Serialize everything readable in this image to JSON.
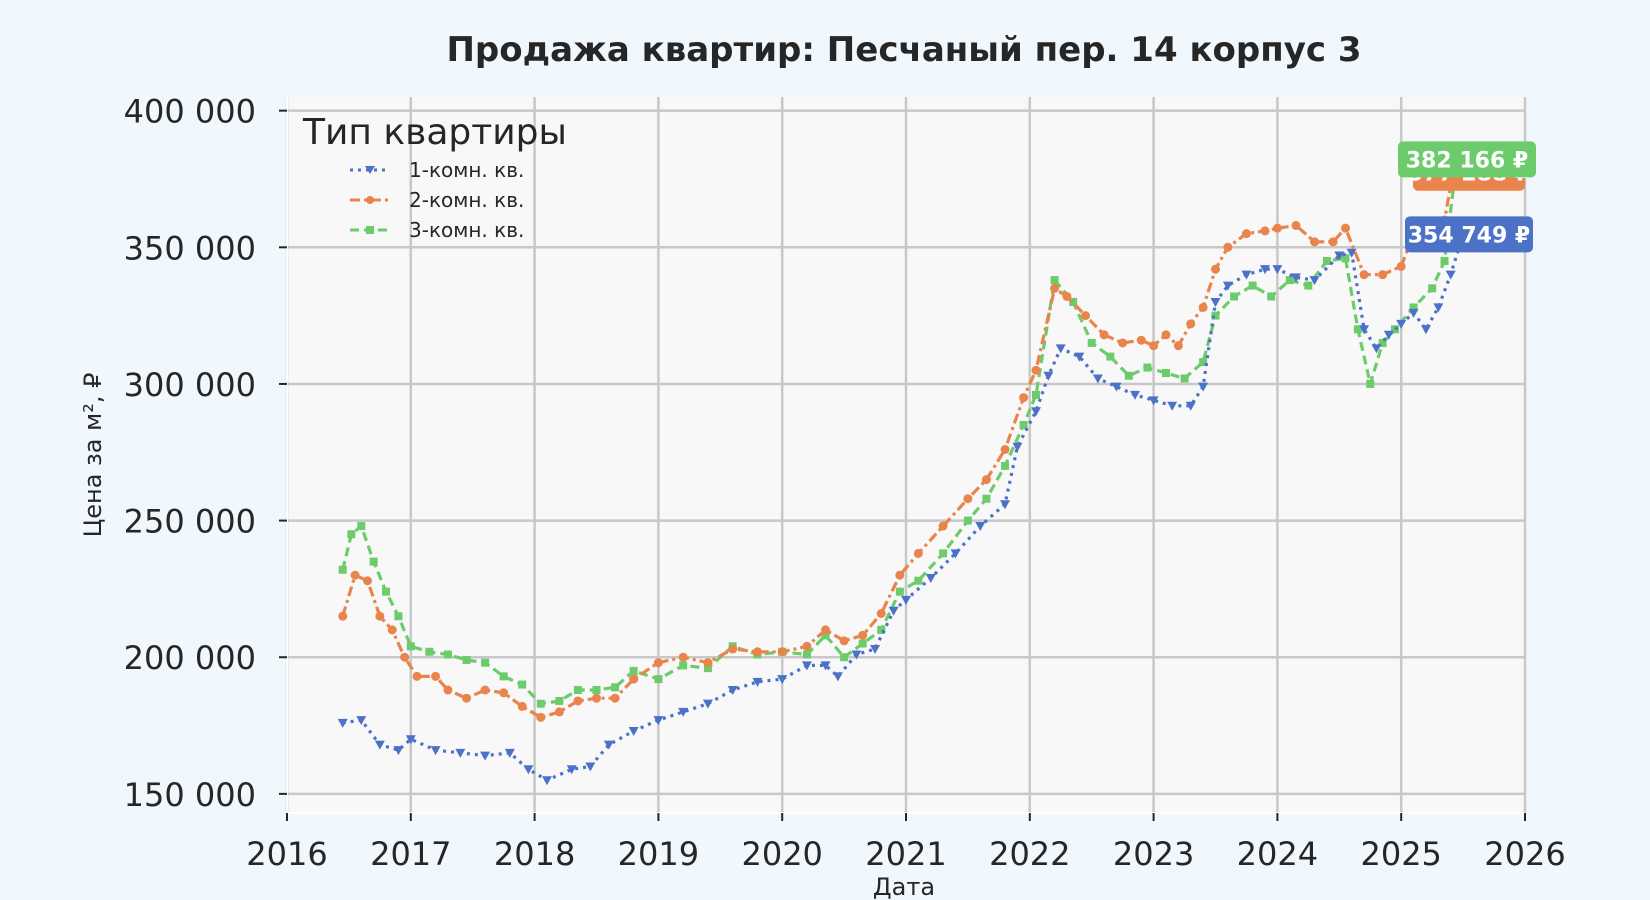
{
  "chart_data": {
    "type": "line",
    "title": "Продажа квартир: Песчаный пер. 14 корпус 3",
    "xlabel": "Дата",
    "ylabel": "Цена за м², ₽",
    "x_ticks": [
      "2016",
      "2017",
      "2018",
      "2019",
      "2020",
      "2021",
      "2022",
      "2023",
      "2024",
      "2025",
      "2026"
    ],
    "y_ticks": [
      "150 000",
      "200 000",
      "250 000",
      "300 000",
      "350 000",
      "400 000"
    ],
    "xlim": [
      2016.0,
      2026.0
    ],
    "ylim": [
      143000,
      405000
    ],
    "grid": true,
    "legend": {
      "title": "Тип квартиры",
      "position": "top-left"
    },
    "series": [
      {
        "name": "1-комн. кв.",
        "color": "#4c72c8",
        "style": "dotted",
        "marker": "triangle-down",
        "last_value_label": "354 749 ₽",
        "points": [
          [
            2016.45,
            176000
          ],
          [
            2016.6,
            177000
          ],
          [
            2016.75,
            168000
          ],
          [
            2016.9,
            166000
          ],
          [
            2017.0,
            170000
          ],
          [
            2017.2,
            166000
          ],
          [
            2017.4,
            165000
          ],
          [
            2017.6,
            164000
          ],
          [
            2017.8,
            165000
          ],
          [
            2017.95,
            159000
          ],
          [
            2018.1,
            155000
          ],
          [
            2018.3,
            159000
          ],
          [
            2018.45,
            160000
          ],
          [
            2018.6,
            168000
          ],
          [
            2018.8,
            173000
          ],
          [
            2019.0,
            177000
          ],
          [
            2019.2,
            180000
          ],
          [
            2019.4,
            183000
          ],
          [
            2019.6,
            188000
          ],
          [
            2019.8,
            191000
          ],
          [
            2020.0,
            192000
          ],
          [
            2020.2,
            197000
          ],
          [
            2020.35,
            197000
          ],
          [
            2020.45,
            193000
          ],
          [
            2020.6,
            201000
          ],
          [
            2020.75,
            203000
          ],
          [
            2020.9,
            217000
          ],
          [
            2021.0,
            221000
          ],
          [
            2021.2,
            229000
          ],
          [
            2021.4,
            238000
          ],
          [
            2021.6,
            248000
          ],
          [
            2021.8,
            256000
          ],
          [
            2021.9,
            277000
          ],
          [
            2022.05,
            290000
          ],
          [
            2022.15,
            303000
          ],
          [
            2022.25,
            313000
          ],
          [
            2022.4,
            310000
          ],
          [
            2022.55,
            302000
          ],
          [
            2022.7,
            299000
          ],
          [
            2022.85,
            296000
          ],
          [
            2023.0,
            294000
          ],
          [
            2023.15,
            292000
          ],
          [
            2023.3,
            292000
          ],
          [
            2023.4,
            299000
          ],
          [
            2023.5,
            330000
          ],
          [
            2023.6,
            336000
          ],
          [
            2023.75,
            340000
          ],
          [
            2023.9,
            342000
          ],
          [
            2024.0,
            342000
          ],
          [
            2024.15,
            339000
          ],
          [
            2024.3,
            338000
          ],
          [
            2024.5,
            347000
          ],
          [
            2024.6,
            348000
          ],
          [
            2024.7,
            320000
          ],
          [
            2024.8,
            313000
          ],
          [
            2024.9,
            318000
          ],
          [
            2025.0,
            322000
          ],
          [
            2025.1,
            326000
          ],
          [
            2025.2,
            320000
          ],
          [
            2025.3,
            328000
          ],
          [
            2025.4,
            340000
          ],
          [
            2025.5,
            354749
          ]
        ]
      },
      {
        "name": "2-комн. кв.",
        "color": "#e8844c",
        "style": "dashdot",
        "marker": "circle",
        "last_value_label": "377 288 ₽",
        "points": [
          [
            2016.45,
            215000
          ],
          [
            2016.55,
            230000
          ],
          [
            2016.65,
            228000
          ],
          [
            2016.75,
            215000
          ],
          [
            2016.85,
            210000
          ],
          [
            2016.95,
            200000
          ],
          [
            2017.05,
            193000
          ],
          [
            2017.2,
            193000
          ],
          [
            2017.3,
            188000
          ],
          [
            2017.45,
            185000
          ],
          [
            2017.6,
            188000
          ],
          [
            2017.75,
            187000
          ],
          [
            2017.9,
            182000
          ],
          [
            2018.05,
            178000
          ],
          [
            2018.2,
            180000
          ],
          [
            2018.35,
            184000
          ],
          [
            2018.5,
            185000
          ],
          [
            2018.65,
            185000
          ],
          [
            2018.8,
            192000
          ],
          [
            2019.0,
            198000
          ],
          [
            2019.2,
            200000
          ],
          [
            2019.4,
            198000
          ],
          [
            2019.6,
            203000
          ],
          [
            2019.8,
            202000
          ],
          [
            2020.0,
            202000
          ],
          [
            2020.2,
            204000
          ],
          [
            2020.35,
            210000
          ],
          [
            2020.5,
            206000
          ],
          [
            2020.65,
            208000
          ],
          [
            2020.8,
            216000
          ],
          [
            2020.95,
            230000
          ],
          [
            2021.1,
            238000
          ],
          [
            2021.3,
            248000
          ],
          [
            2021.5,
            258000
          ],
          [
            2021.65,
            265000
          ],
          [
            2021.8,
            276000
          ],
          [
            2021.95,
            295000
          ],
          [
            2022.05,
            305000
          ],
          [
            2022.2,
            335000
          ],
          [
            2022.3,
            332000
          ],
          [
            2022.45,
            325000
          ],
          [
            2022.6,
            318000
          ],
          [
            2022.75,
            315000
          ],
          [
            2022.9,
            316000
          ],
          [
            2023.0,
            314000
          ],
          [
            2023.1,
            318000
          ],
          [
            2023.2,
            314000
          ],
          [
            2023.3,
            322000
          ],
          [
            2023.4,
            328000
          ],
          [
            2023.5,
            342000
          ],
          [
            2023.6,
            350000
          ],
          [
            2023.75,
            355000
          ],
          [
            2023.9,
            356000
          ],
          [
            2024.0,
            357000
          ],
          [
            2024.15,
            358000
          ],
          [
            2024.3,
            352000
          ],
          [
            2024.45,
            352000
          ],
          [
            2024.55,
            357000
          ],
          [
            2024.7,
            340000
          ],
          [
            2024.85,
            340000
          ],
          [
            2025.0,
            343000
          ],
          [
            2025.1,
            355000
          ],
          [
            2025.2,
            355000
          ],
          [
            2025.35,
            360000
          ],
          [
            2025.45,
            385000
          ],
          [
            2025.5,
            377288
          ]
        ]
      },
      {
        "name": "3-комн. кв.",
        "color": "#6ccc6c",
        "style": "dashed",
        "marker": "square",
        "last_value_label": "382 166 ₽",
        "points": [
          [
            2016.45,
            232000
          ],
          [
            2016.52,
            245000
          ],
          [
            2016.6,
            248000
          ],
          [
            2016.7,
            235000
          ],
          [
            2016.8,
            224000
          ],
          [
            2016.9,
            215000
          ],
          [
            2017.0,
            204000
          ],
          [
            2017.15,
            202000
          ],
          [
            2017.3,
            201000
          ],
          [
            2017.45,
            199000
          ],
          [
            2017.6,
            198000
          ],
          [
            2017.75,
            193000
          ],
          [
            2017.9,
            190000
          ],
          [
            2018.05,
            183000
          ],
          [
            2018.2,
            184000
          ],
          [
            2018.35,
            188000
          ],
          [
            2018.5,
            188000
          ],
          [
            2018.65,
            189000
          ],
          [
            2018.8,
            195000
          ],
          [
            2019.0,
            192000
          ],
          [
            2019.2,
            197000
          ],
          [
            2019.4,
            196000
          ],
          [
            2019.6,
            204000
          ],
          [
            2019.8,
            201000
          ],
          [
            2020.0,
            202000
          ],
          [
            2020.2,
            201000
          ],
          [
            2020.35,
            208000
          ],
          [
            2020.5,
            200000
          ],
          [
            2020.65,
            205000
          ],
          [
            2020.8,
            210000
          ],
          [
            2020.95,
            224000
          ],
          [
            2021.1,
            228000
          ],
          [
            2021.3,
            238000
          ],
          [
            2021.5,
            250000
          ],
          [
            2021.65,
            258000
          ],
          [
            2021.8,
            270000
          ],
          [
            2021.95,
            285000
          ],
          [
            2022.05,
            296000
          ],
          [
            2022.2,
            338000
          ],
          [
            2022.35,
            330000
          ],
          [
            2022.5,
            315000
          ],
          [
            2022.65,
            310000
          ],
          [
            2022.8,
            303000
          ],
          [
            2022.95,
            306000
          ],
          [
            2023.1,
            304000
          ],
          [
            2023.25,
            302000
          ],
          [
            2023.4,
            308000
          ],
          [
            2023.5,
            325000
          ],
          [
            2023.65,
            332000
          ],
          [
            2023.8,
            336000
          ],
          [
            2023.95,
            332000
          ],
          [
            2024.1,
            338000
          ],
          [
            2024.25,
            336000
          ],
          [
            2024.4,
            345000
          ],
          [
            2024.55,
            346000
          ],
          [
            2024.65,
            320000
          ],
          [
            2024.75,
            300000
          ],
          [
            2024.85,
            315000
          ],
          [
            2024.95,
            320000
          ],
          [
            2025.1,
            328000
          ],
          [
            2025.25,
            335000
          ],
          [
            2025.35,
            345000
          ],
          [
            2025.45,
            382166
          ]
        ]
      }
    ]
  }
}
